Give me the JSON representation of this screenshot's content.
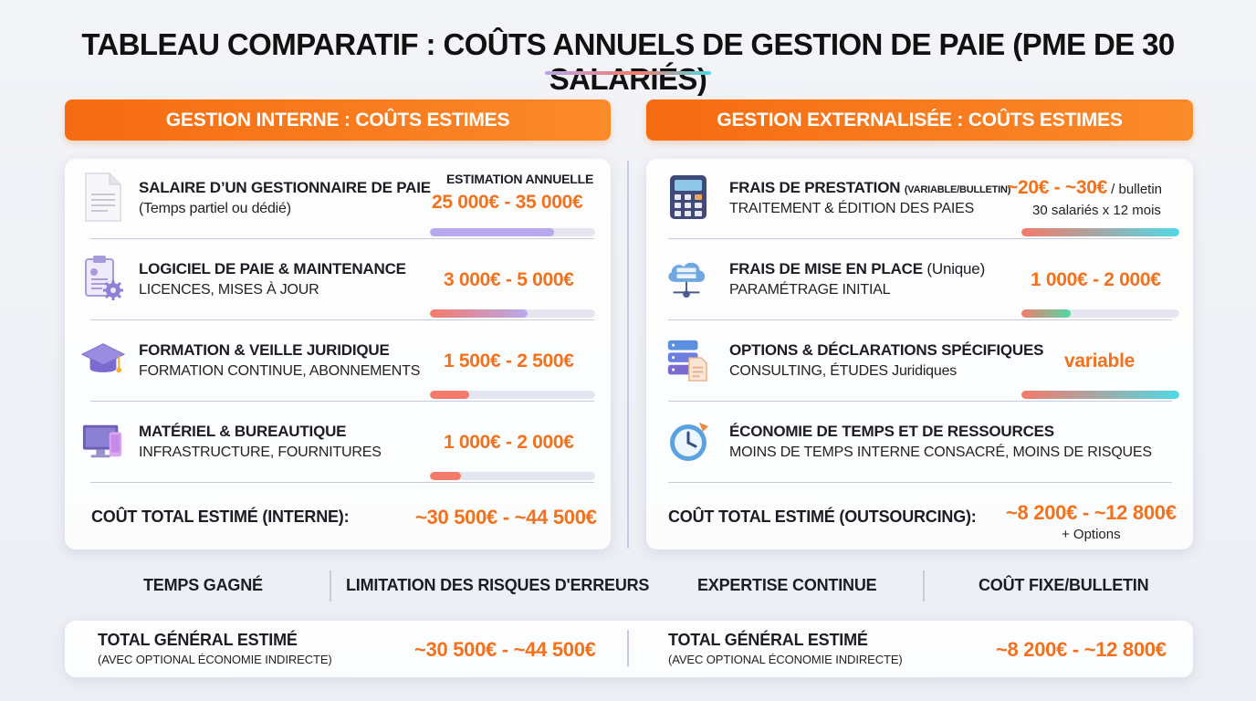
{
  "title": "TABLEAU COMPARATIF : COÛTS ANNUELS DE GESTION DE PAIE (PME DE 30 SALARIÉS)",
  "colors": {
    "accent": "#f2711c",
    "header": "#f66b12",
    "bar_purple": "#b8a9ee",
    "bar_coral": "#f47a6a",
    "bar_cyan": "#4fd9e6"
  },
  "internal": {
    "header": "GESTION INTERNE : COÛTS ESTIMES",
    "estimation_label": "ESTIMATION ANNUELLE",
    "items": [
      {
        "icon": "document-icon",
        "title": "SALAIRE D’UN GESTIONNAIRE DE PAIE",
        "subtitle": "(Temps partiel ou dédié)",
        "value": "25 000€ - 35 000€",
        "bar_level": 0.75
      },
      {
        "icon": "clipboard-gear-icon",
        "title": "LOGICIEL DE PAIE & MAINTENANCE",
        "subtitle": "LICENCES, MISES À JOUR",
        "value": "3 000€ - 5 000€",
        "bar_level": 0.59
      },
      {
        "icon": "graduation-cap-icon",
        "title": "FORMATION & VEILLE JURIDIQUE",
        "subtitle": "FORMATION CONTINUE, ABONNEMENTS",
        "value": "1 500€ - 2 500€",
        "bar_level": 0.24
      },
      {
        "icon": "computer-icon",
        "title": "MATÉRIEL & BUREAUTIQUE",
        "subtitle": "INFRASTRUCTURE, FOURNITURES",
        "value": "1 000€ - 2 000€",
        "bar_level": 0.19
      }
    ],
    "total_label": "COÛT TOTAL ESTIMÉ (INTERNE):",
    "total_value": "~30 500€ - ~44 500€"
  },
  "external": {
    "header": "GESTION EXTERNALISÉE : COÛTS ESTIMES",
    "items": [
      {
        "icon": "calculator-icon",
        "title": "FRAIS DE PRESTATION",
        "title_tag": "(VARIABLE/BULLETIN)",
        "subtitle": "TRAITEMENT & ÉDITION DES PAIES",
        "value": "~20€ - ~30€",
        "value_suffix": " / bulletin",
        "value_note": "30 salariés x 12 mois",
        "bar_level": 1.0
      },
      {
        "icon": "cloud-server-icon",
        "title": "FRAIS DE MISE EN PLACE",
        "title_suffix": " (Unique)",
        "subtitle": "PARAMÉTRAGE INITIAL",
        "value": "1 000€ - 2 000€",
        "bar_level": 0.31
      },
      {
        "icon": "server-document-icon",
        "title": "OPTIONS & DÉCLARATIONS SPÉCIFIQUES",
        "subtitle": "CONSULTING, ÉTUDES Juridiques",
        "value": "variable",
        "bar_level": 1.0
      },
      {
        "icon": "clock-icon",
        "title": "ÉCONOMIE DE TEMPS ET DE RESSOURCES",
        "subtitle": "MOINS DE TEMPS INTERNE CONSACRÉ, MOINS DE RISQUES"
      }
    ],
    "total_label": "COÛT TOTAL ESTIMÉ (OUTSOURCING):",
    "total_value": "~8 200€ - ~12 800€",
    "total_note": "+ Options"
  },
  "benefits": [
    "TEMPS GAGNÉ",
    "LIMITATION DES RISQUES D'ERREURS",
    "EXPERTISE CONTINUE",
    "COÛT FIXE/BULLETIN"
  ],
  "grand_total": {
    "left": {
      "title": "TOTAL GÉNÉRAL ESTIMÉ",
      "subtitle": "(AVEC OPTIONAL ÉCONOMIE INDIRECTE)",
      "value": "~30 500€ - ~44 500€"
    },
    "right": {
      "title": "TOTAL GÉNÉRAL ESTIMÉ",
      "subtitle": "(AVEC OPTIONAL ÉCONOMIE INDIRECTE)",
      "value": "~8 200€ - ~12 800€"
    }
  }
}
